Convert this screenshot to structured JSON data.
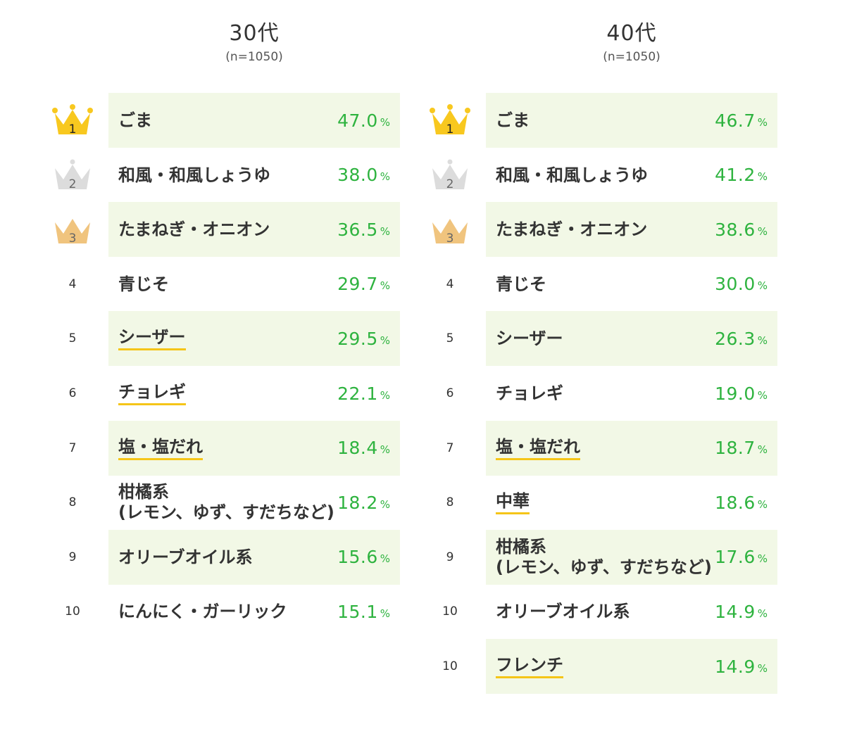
{
  "colors": {
    "band": "#f2f8e6",
    "value": "#2eb33f",
    "underline": "#f5c518",
    "gold": "#f8c81f",
    "silver": "#dcdcdc",
    "bronze": "#f0c47e"
  },
  "chart_data": [
    {
      "type": "table",
      "title": "30代",
      "n_label": "(n=1050)",
      "unit": "%",
      "rows": [
        {
          "rank": "1",
          "label": "ごま",
          "value": "47.0",
          "medal": "gold-crown-icon",
          "underline": false
        },
        {
          "rank": "2",
          "label": "和風・和風しょうゆ",
          "value": "38.0",
          "medal": "silver-crown-icon",
          "underline": false
        },
        {
          "rank": "3",
          "label": "たまねぎ・オニオン",
          "value": "36.5",
          "medal": "bronze-crown-icon",
          "underline": false
        },
        {
          "rank": "4",
          "label": "青じそ",
          "value": "29.7",
          "medal": "",
          "underline": false
        },
        {
          "rank": "5",
          "label": "シーザー",
          "value": "29.5",
          "medal": "",
          "underline": true
        },
        {
          "rank": "6",
          "label": "チョレギ",
          "value": "22.1",
          "medal": "",
          "underline": true
        },
        {
          "rank": "7",
          "label": "塩・塩だれ",
          "value": "18.4",
          "medal": "",
          "underline": true
        },
        {
          "rank": "8",
          "label": "柑橘系\n(レモン、ゆず、すだちなど)",
          "value": "18.2",
          "medal": "",
          "underline": false
        },
        {
          "rank": "9",
          "label": "オリーブオイル系",
          "value": "15.6",
          "medal": "",
          "underline": false
        },
        {
          "rank": "10",
          "label": "にんにく・ガーリック",
          "value": "15.1",
          "medal": "",
          "underline": false
        }
      ]
    },
    {
      "type": "table",
      "title": "40代",
      "n_label": "(n=1050)",
      "unit": "%",
      "rows": [
        {
          "rank": "1",
          "label": "ごま",
          "value": "46.7",
          "medal": "gold-crown-icon",
          "underline": false
        },
        {
          "rank": "2",
          "label": "和風・和風しょうゆ",
          "value": "41.2",
          "medal": "silver-crown-icon",
          "underline": false
        },
        {
          "rank": "3",
          "label": "たまねぎ・オニオン",
          "value": "38.6",
          "medal": "bronze-crown-icon",
          "underline": false
        },
        {
          "rank": "4",
          "label": "青じそ",
          "value": "30.0",
          "medal": "",
          "underline": false
        },
        {
          "rank": "5",
          "label": "シーザー",
          "value": "26.3",
          "medal": "",
          "underline": false
        },
        {
          "rank": "6",
          "label": "チョレギ",
          "value": "19.0",
          "medal": "",
          "underline": false
        },
        {
          "rank": "7",
          "label": "塩・塩だれ",
          "value": "18.7",
          "medal": "",
          "underline": true
        },
        {
          "rank": "8",
          "label": "中華",
          "value": "18.6",
          "medal": "",
          "underline": true
        },
        {
          "rank": "9",
          "label": "柑橘系\n(レモン、ゆず、すだちなど)",
          "value": "17.6",
          "medal": "",
          "underline": false
        },
        {
          "rank": "10",
          "label": "オリーブオイル系",
          "value": "14.9",
          "medal": "",
          "underline": false
        },
        {
          "rank": "10",
          "label": "フレンチ",
          "value": "14.9",
          "medal": "",
          "underline": true
        }
      ]
    }
  ]
}
